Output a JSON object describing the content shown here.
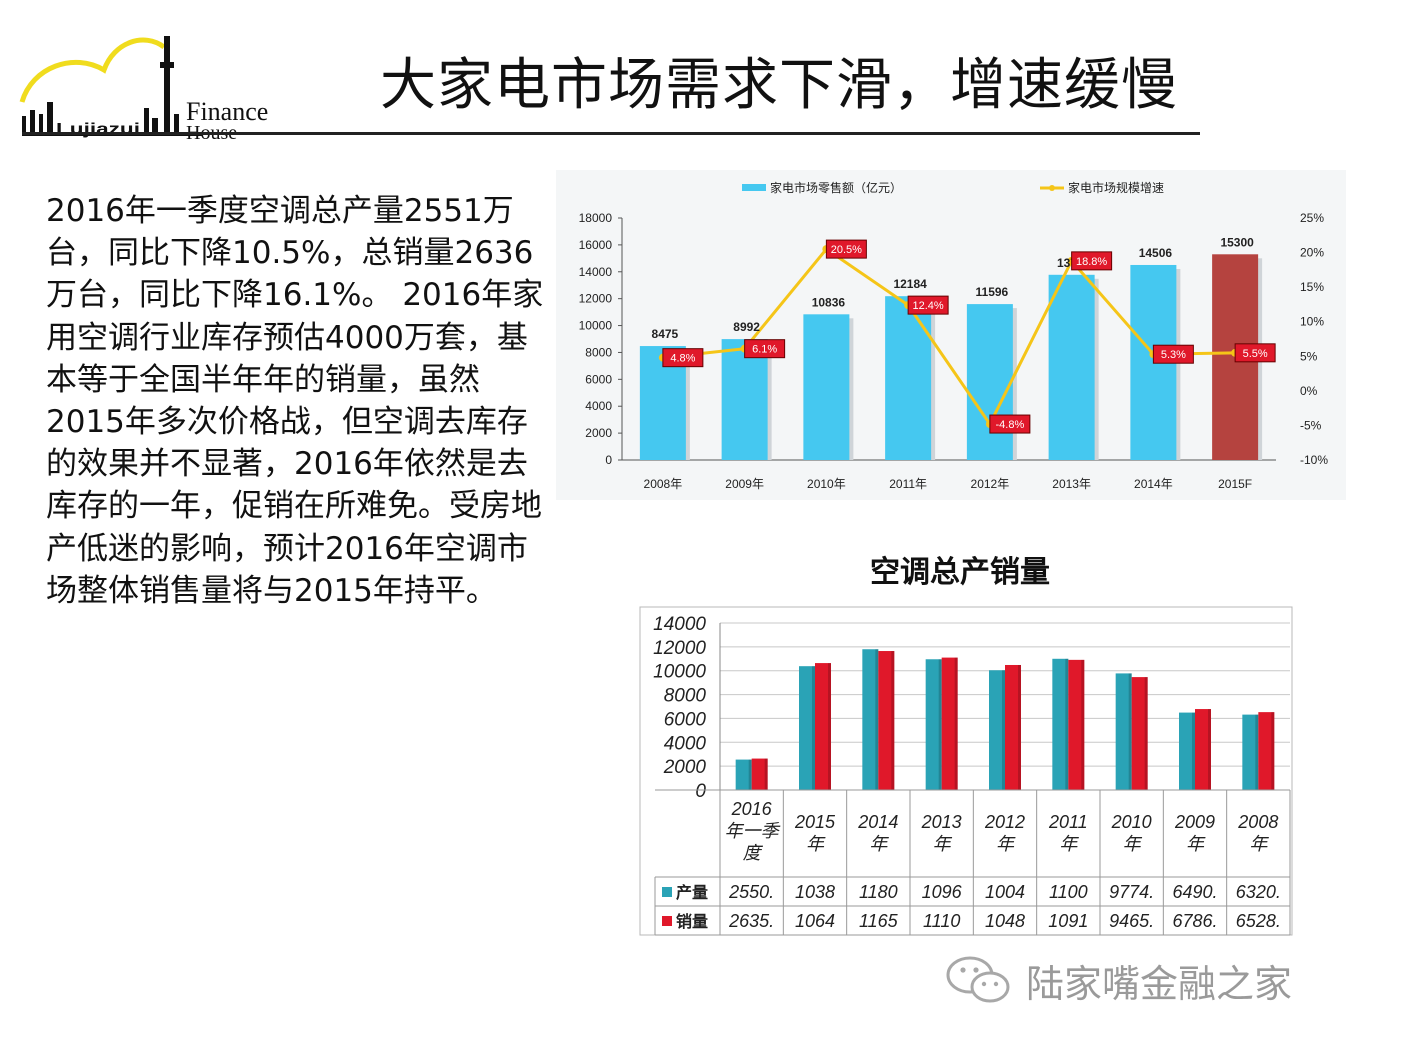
{
  "logo": {
    "finance": "Finance",
    "house": "House",
    "laz": "Lujiazui"
  },
  "title": "大家电市场需求下滑，增速缓慢",
  "body_text": "2016年一季度空调总产量2551万台，同比下降10.5%，总销量2636万台，同比下降16.1%。 2016年家用空调行业库存预估4000万套，基本等于全国半年年的销量，虽然2015年多次价格战，但空调去库存的效果并不显著，2016年依然是去库存的一年，促销在所难免。受房地产低迷的影响，预计2016年空调市场整体销售量将与2015年持平。",
  "watermark": "陆家嘴金融之家",
  "colors": {
    "accent_blue": "#45c8f0",
    "accent_red": "#b5433f",
    "line_yellow": "#f5c518",
    "teal": "#2aa3b6",
    "crimson": "#e0182a"
  },
  "chart_data": [
    {
      "type": "bar+line",
      "title": "",
      "legend": [
        "家电市场零售额（亿元）",
        "家电市场规模增速"
      ],
      "legend_position": "top",
      "categories": [
        "2008年",
        "2009年",
        "2010年",
        "2011年",
        "2012年",
        "2013年",
        "2014年",
        "2015F"
      ],
      "bar_values": [
        8475,
        8992,
        10836,
        12184,
        11596,
        13776,
        14506,
        15300
      ],
      "bar_labels": [
        "8475",
        "8992",
        "10836",
        "12184",
        "11596",
        "13776",
        "14506",
        "15300"
      ],
      "line_values": [
        4.8,
        6.1,
        20.5,
        12.4,
        -4.8,
        18.8,
        5.3,
        5.5
      ],
      "line_labels": [
        "4.8%",
        "6.1%",
        "20.5%",
        "12.4%",
        "-4.8%",
        "18.8%",
        "5.3%",
        "5.5%"
      ],
      "y_ticks": [
        "0",
        "2000",
        "4000",
        "6000",
        "8000",
        "10000",
        "12000",
        "14000",
        "16000",
        "18000"
      ],
      "y2_ticks": [
        "-10%",
        "-5%",
        "0%",
        "5%",
        "10%",
        "15%",
        "20%",
        "25%"
      ],
      "ylim": [
        0,
        18000
      ],
      "y2lim": [
        -10,
        25
      ],
      "grid": false
    },
    {
      "type": "bar",
      "title": "空调总产销量",
      "categories": [
        "2016年一季度",
        "2015年",
        "2014年",
        "2013年",
        "2012年",
        "2011年",
        "2010年",
        "2009年",
        "2008年"
      ],
      "category_lines": [
        [
          "2016",
          "年一季",
          "度"
        ],
        [
          "2015",
          "年"
        ],
        [
          "2014",
          "年"
        ],
        [
          "2013",
          "年"
        ],
        [
          "2012",
          "年"
        ],
        [
          "2011",
          "年"
        ],
        [
          "2010",
          "年"
        ],
        [
          "2009",
          "年"
        ],
        [
          "2008",
          "年"
        ]
      ],
      "series": [
        {
          "name": "产量",
          "values": [
            2550,
            10380,
            11800,
            10960,
            10040,
            11000,
            9774,
            6490,
            6320
          ],
          "table_text": [
            "2550.",
            "1038",
            "1180",
            "1096",
            "1004",
            "1100",
            "9774.",
            "6490.",
            "6320."
          ]
        },
        {
          "name": "销量",
          "values": [
            2635,
            10640,
            11650,
            11100,
            10480,
            10910,
            9465,
            6786,
            6528
          ],
          "table_text": [
            "2635.",
            "1064",
            "1165",
            "1110",
            "1048",
            "1091",
            "9465.",
            "6786.",
            "6528."
          ]
        }
      ],
      "y_ticks": [
        "0",
        "2000",
        "4000",
        "6000",
        "8000",
        "10000",
        "12000",
        "14000"
      ],
      "ylim": [
        0,
        14000
      ],
      "grid": true,
      "data_table": true
    }
  ]
}
